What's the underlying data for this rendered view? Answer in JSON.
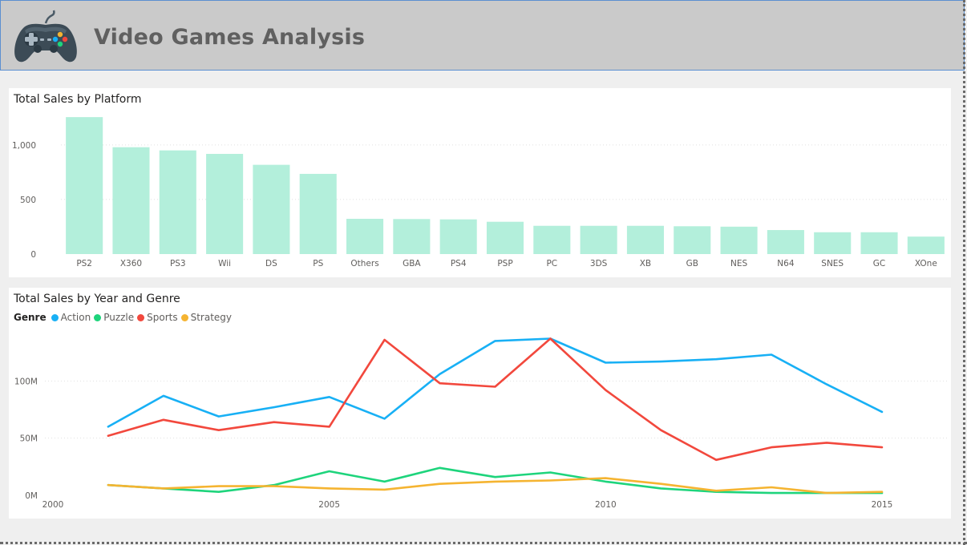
{
  "header": {
    "title": "Video Games Analysis",
    "logo_icon": "gamepad-icon"
  },
  "colors": {
    "bar": "#b3efdb",
    "action": "#18b0f5",
    "puzzle": "#1ed47c",
    "sports": "#f2483d",
    "strategy": "#f5b431",
    "gridline": "#e1e1e1",
    "axis_text": "#605e5c"
  },
  "chart_data": [
    {
      "type": "bar",
      "title": "Total Sales by Platform",
      "categories": [
        "PS2",
        "X360",
        "PS3",
        "Wii",
        "DS",
        "PS",
        "Others",
        "GBA",
        "PS4",
        "PSP",
        "PC",
        "3DS",
        "XB",
        "GB",
        "NES",
        "N64",
        "SNES",
        "GC",
        "XOne"
      ],
      "values": [
        1255,
        979,
        950,
        918,
        818,
        735,
        323,
        321,
        318,
        296,
        259,
        259,
        259,
        255,
        251,
        220,
        200,
        200,
        160
      ],
      "ylim": [
        0,
        1300
      ],
      "yticks": [
        0,
        500,
        1000
      ],
      "ytick_labels": [
        "0",
        "500",
        "1,000"
      ],
      "grid": true
    },
    {
      "type": "line",
      "title": "Total Sales by Year and Genre",
      "legend_title": "Genre",
      "legend_position": "top-left",
      "x": [
        2001,
        2002,
        2003,
        2004,
        2005,
        2006,
        2007,
        2008,
        2009,
        2010,
        2011,
        2012,
        2013,
        2014,
        2015
      ],
      "xlim": [
        2000,
        2016.2
      ],
      "xticks": [
        2000,
        2005,
        2010,
        2015
      ],
      "ylim": [
        0,
        150
      ],
      "yticks": [
        0,
        50,
        100
      ],
      "ytick_labels": [
        "0M",
        "50M",
        "100M"
      ],
      "grid": true,
      "series": [
        {
          "name": "Action",
          "color_key": "action",
          "values": [
            60,
            87,
            69,
            77,
            86,
            67,
            106,
            135,
            137,
            116,
            117,
            119,
            123,
            97,
            73
          ]
        },
        {
          "name": "Puzzle",
          "color_key": "puzzle",
          "values": [
            9,
            6,
            3,
            9,
            21,
            12,
            24,
            16,
            20,
            12,
            6,
            3,
            2,
            2,
            2
          ]
        },
        {
          "name": "Sports",
          "color_key": "sports",
          "values": [
            52,
            66,
            57,
            64,
            60,
            136,
            98,
            95,
            137,
            92,
            57,
            31,
            42,
            46,
            42
          ]
        },
        {
          "name": "Strategy",
          "color_key": "strategy",
          "values": [
            9,
            6,
            8,
            8,
            6,
            5,
            10,
            12,
            13,
            15,
            10,
            4,
            7,
            2,
            3
          ]
        }
      ]
    }
  ]
}
